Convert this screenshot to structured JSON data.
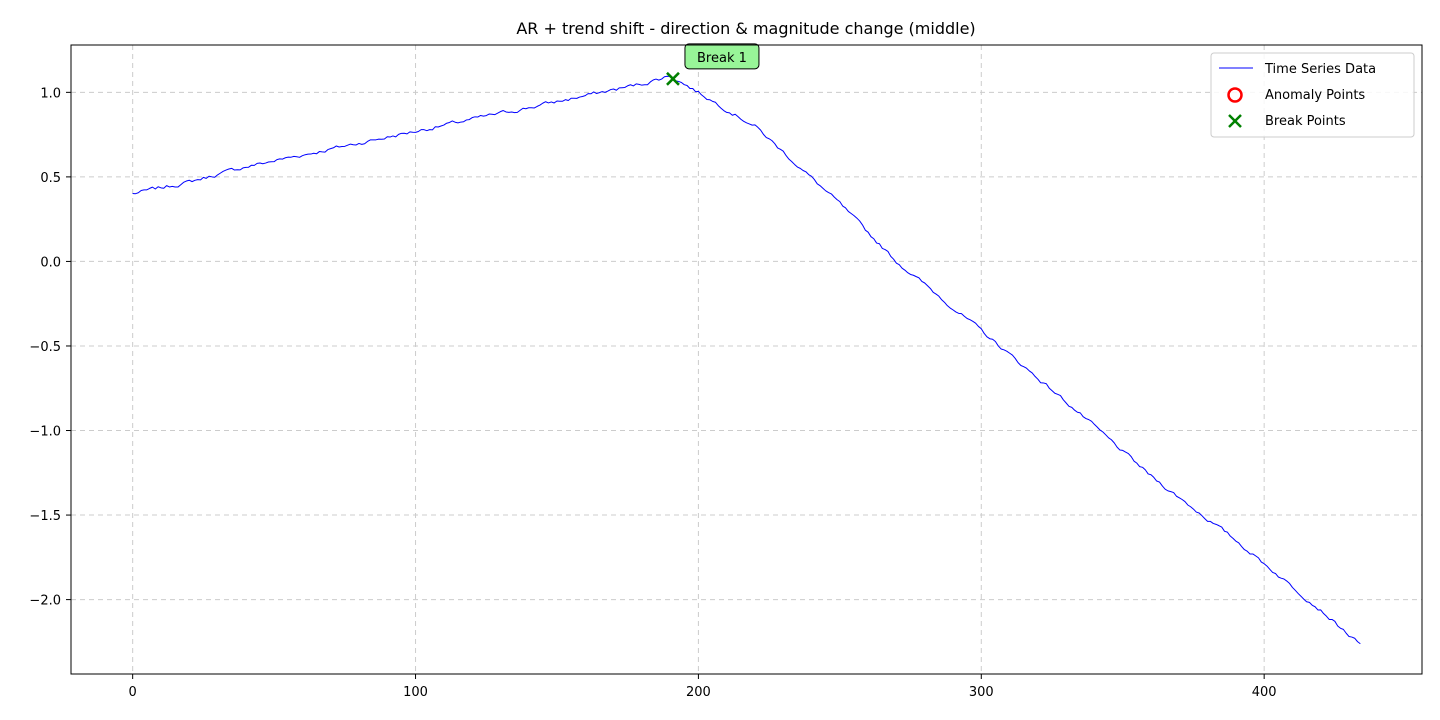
{
  "chart_data": {
    "type": "line",
    "title": "AR + trend shift - direction & magnitude change (middle)",
    "xlabel": "",
    "ylabel": "",
    "xlim": [
      -21.8,
      455.8
    ],
    "ylim": [
      -2.44,
      1.28
    ],
    "xticks": [
      0,
      100,
      200,
      300,
      400
    ],
    "xtick_labels": [
      "0",
      "100",
      "200",
      "300",
      "400"
    ],
    "yticks": [
      -2.0,
      -1.5,
      -1.0,
      -0.5,
      0.0,
      0.5,
      1.0
    ],
    "ytick_labels": [
      "−2.0",
      "−1.5",
      "−1.0",
      "−0.5",
      "0.0",
      "0.5",
      "1.0"
    ],
    "grid": true,
    "legend_position": "top-right",
    "series": [
      {
        "name": "Time Series Data",
        "color": "#0000ff",
        "trend_points": [
          {
            "x": 0,
            "y": 0.4
          },
          {
            "x": 20,
            "y": 0.47
          },
          {
            "x": 40,
            "y": 0.56
          },
          {
            "x": 60,
            "y": 0.63
          },
          {
            "x": 80,
            "y": 0.7
          },
          {
            "x": 100,
            "y": 0.77
          },
          {
            "x": 120,
            "y": 0.84
          },
          {
            "x": 140,
            "y": 0.91
          },
          {
            "x": 160,
            "y": 0.98
          },
          {
            "x": 180,
            "y": 1.05
          },
          {
            "x": 190,
            "y": 1.1
          },
          {
            "x": 200,
            "y": 1.0
          },
          {
            "x": 220,
            "y": 0.8
          },
          {
            "x": 250,
            "y": 0.34
          },
          {
            "x": 270,
            "y": 0.0
          },
          {
            "x": 300,
            "y": -0.41
          },
          {
            "x": 330,
            "y": -0.83
          },
          {
            "x": 360,
            "y": -1.27
          },
          {
            "x": 390,
            "y": -1.65
          },
          {
            "x": 420,
            "y": -2.06
          },
          {
            "x": 434,
            "y": -2.27
          }
        ]
      }
    ],
    "anomaly_points": [],
    "break_points": [
      {
        "x": 191,
        "y": 1.08,
        "label": "Break 1"
      }
    ],
    "legend": [
      {
        "label": "Time Series Data",
        "marker": "line",
        "color": "#0000ff"
      },
      {
        "label": "Anomaly Points",
        "marker": "circle",
        "color": "#ff0000"
      },
      {
        "label": "Break Points",
        "marker": "x",
        "color": "#008000"
      }
    ]
  }
}
